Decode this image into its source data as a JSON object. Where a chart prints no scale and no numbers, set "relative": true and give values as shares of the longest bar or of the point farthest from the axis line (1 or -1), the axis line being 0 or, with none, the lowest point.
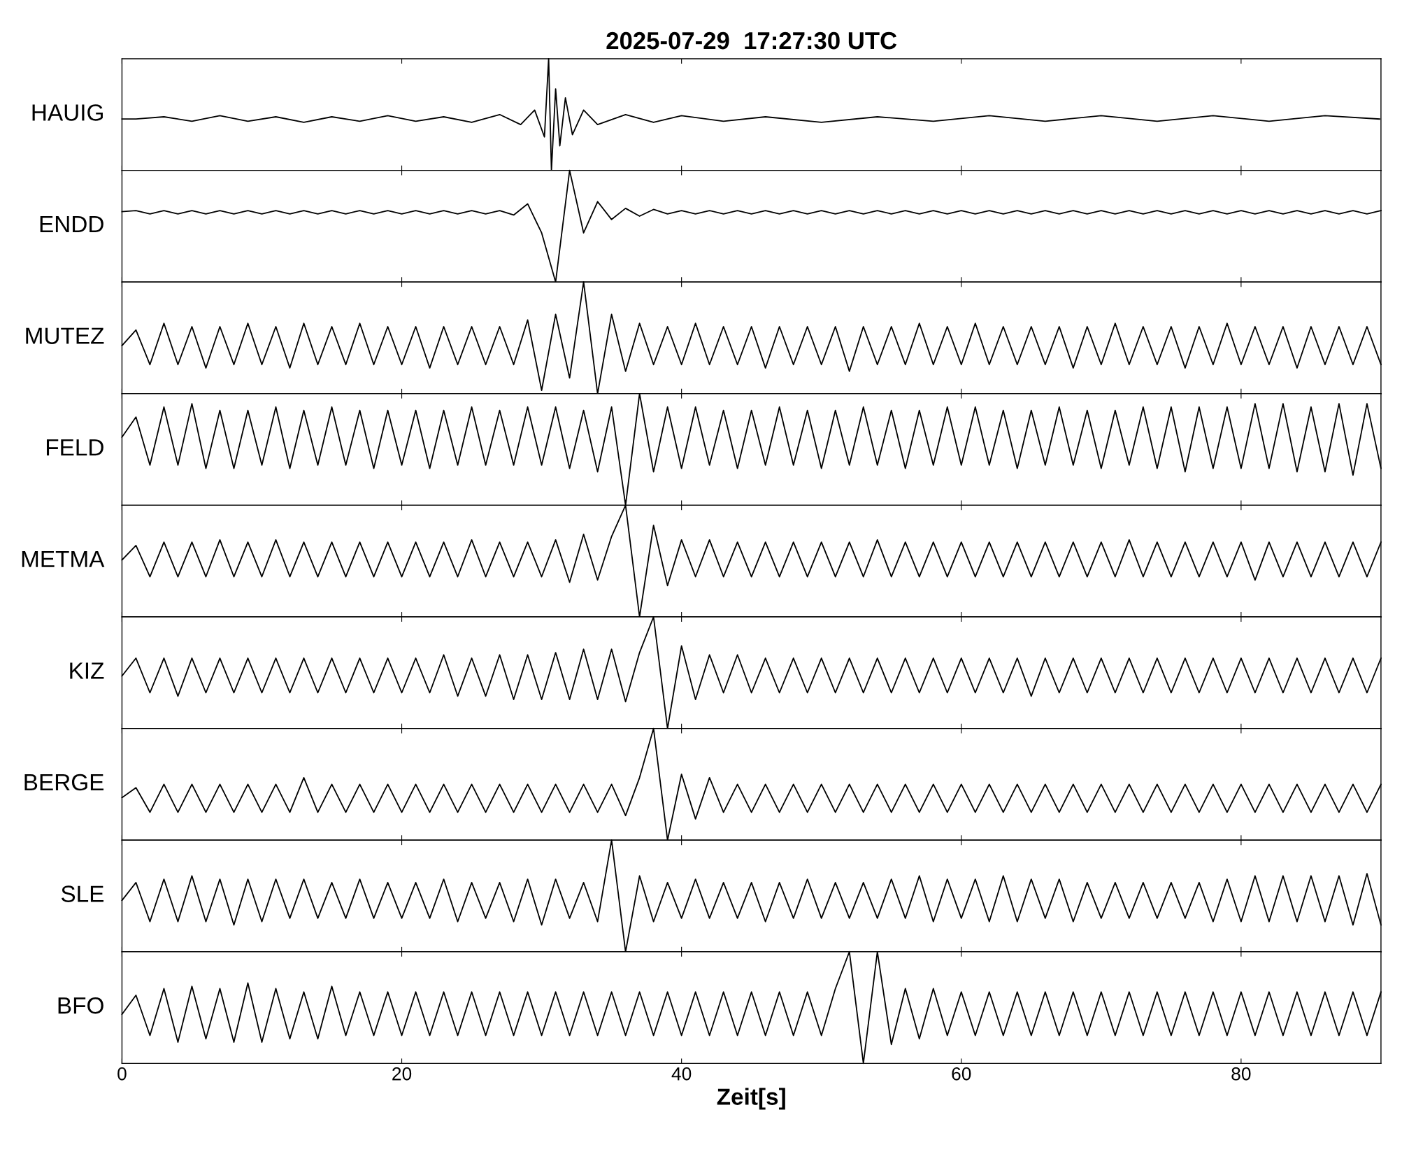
{
  "chart_data": [
    {
      "type": "line",
      "title": "2025-07-29  17:27:30 UTC",
      "ylabel": "HAUIG",
      "relative": true,
      "color": "#000000",
      "xlim": [
        0,
        90
      ],
      "xticks": [
        0,
        20,
        40,
        60,
        80
      ],
      "tick_labels": false,
      "x": [
        0,
        1,
        3,
        5,
        7,
        9,
        11,
        13,
        15,
        17,
        19,
        21,
        23,
        25,
        27,
        28.5,
        29.5,
        30.2,
        30.5,
        30.7,
        31,
        31.3,
        31.7,
        32.2,
        33,
        34,
        36,
        38,
        40,
        43,
        46,
        50,
        54,
        58,
        62,
        66,
        70,
        74,
        78,
        82,
        86,
        89.9
      ],
      "values": [
        0.46,
        0.46,
        0.48,
        0.44,
        0.49,
        0.44,
        0.48,
        0.43,
        0.48,
        0.44,
        0.49,
        0.44,
        0.48,
        0.43,
        0.5,
        0.41,
        0.54,
        0.3,
        1,
        0,
        0.73,
        0.22,
        0.65,
        0.32,
        0.54,
        0.41,
        0.5,
        0.43,
        0.49,
        0.44,
        0.48,
        0.43,
        0.48,
        0.44,
        0.49,
        0.44,
        0.49,
        0.44,
        0.49,
        0.44,
        0.49,
        0.46
      ]
    },
    {
      "type": "line",
      "ylabel": "ENDD",
      "relative": true,
      "color": "#000000",
      "xlim": [
        0,
        90
      ],
      "xticks": [
        0,
        20,
        40,
        60,
        80
      ],
      "tick_labels": false,
      "x": [
        0,
        1,
        2,
        3,
        4,
        5,
        6,
        7,
        8,
        9,
        10,
        11,
        12,
        13,
        14,
        15,
        16,
        17,
        18,
        19,
        20,
        21,
        22,
        23,
        24,
        25,
        26,
        27,
        28,
        29,
        30,
        31,
        32,
        33,
        34,
        35,
        36,
        37,
        38,
        39,
        40,
        41,
        42,
        43,
        44,
        45,
        46,
        47,
        48,
        49,
        50,
        51,
        52,
        53,
        54,
        55,
        56,
        57,
        58,
        59,
        60,
        61,
        62,
        63,
        64,
        65,
        66,
        67,
        68,
        69,
        70,
        71,
        72,
        73,
        74,
        75,
        76,
        77,
        78,
        79,
        80,
        81,
        82,
        83,
        84,
        85,
        86,
        87,
        88,
        89,
        90
      ],
      "values": [
        0.63,
        0.64,
        0.61,
        0.64,
        0.61,
        0.64,
        0.61,
        0.64,
        0.61,
        0.64,
        0.61,
        0.64,
        0.61,
        0.64,
        0.61,
        0.64,
        0.61,
        0.64,
        0.61,
        0.64,
        0.61,
        0.64,
        0.61,
        0.64,
        0.61,
        0.64,
        0.61,
        0.64,
        0.6,
        0.7,
        0.44,
        0,
        1,
        0.44,
        0.72,
        0.56,
        0.66,
        0.59,
        0.65,
        0.61,
        0.64,
        0.61,
        0.64,
        0.61,
        0.64,
        0.61,
        0.64,
        0.61,
        0.64,
        0.61,
        0.64,
        0.61,
        0.64,
        0.61,
        0.64,
        0.61,
        0.64,
        0.61,
        0.64,
        0.61,
        0.64,
        0.61,
        0.64,
        0.61,
        0.64,
        0.61,
        0.64,
        0.61,
        0.64,
        0.61,
        0.64,
        0.61,
        0.64,
        0.61,
        0.64,
        0.61,
        0.64,
        0.61,
        0.64,
        0.61,
        0.64,
        0.61,
        0.64,
        0.61,
        0.64,
        0.61,
        0.64,
        0.61,
        0.64,
        0.61,
        0.64
      ]
    },
    {
      "type": "line",
      "ylabel": "MUTEZ",
      "relative": true,
      "color": "#000000",
      "xlim": [
        0,
        90
      ],
      "xticks": [
        0,
        20,
        40,
        60,
        80
      ],
      "tick_labels": false,
      "x": [
        0,
        1,
        2,
        3,
        4,
        5,
        6,
        7,
        8,
        9,
        10,
        11,
        12,
        13,
        14,
        15,
        16,
        17,
        18,
        19,
        20,
        21,
        22,
        23,
        24,
        25,
        26,
        27,
        28,
        29,
        30,
        31,
        32,
        33,
        34,
        35,
        36,
        37,
        38,
        39,
        40,
        41,
        42,
        43,
        44,
        45,
        46,
        47,
        48,
        49,
        50,
        51,
        52,
        53,
        54,
        55,
        56,
        57,
        58,
        59,
        60,
        61,
        62,
        63,
        64,
        65,
        66,
        67,
        68,
        69,
        70,
        71,
        72,
        73,
        74,
        75,
        76,
        77,
        78,
        79,
        80,
        81,
        82,
        83,
        84,
        85,
        86,
        87,
        88,
        89,
        90
      ],
      "values": [
        0.43,
        0.57,
        0.26,
        0.63,
        0.26,
        0.6,
        0.23,
        0.6,
        0.26,
        0.63,
        0.26,
        0.6,
        0.23,
        0.63,
        0.26,
        0.6,
        0.26,
        0.63,
        0.26,
        0.6,
        0.26,
        0.6,
        0.23,
        0.6,
        0.26,
        0.6,
        0.26,
        0.6,
        0.26,
        0.66,
        0.03,
        0.71,
        0.14,
        1,
        0,
        0.71,
        0.2,
        0.63,
        0.26,
        0.6,
        0.26,
        0.63,
        0.26,
        0.6,
        0.26,
        0.6,
        0.23,
        0.6,
        0.26,
        0.6,
        0.26,
        0.6,
        0.2,
        0.6,
        0.26,
        0.6,
        0.26,
        0.63,
        0.26,
        0.6,
        0.26,
        0.63,
        0.26,
        0.6,
        0.26,
        0.6,
        0.26,
        0.6,
        0.23,
        0.6,
        0.26,
        0.63,
        0.26,
        0.6,
        0.26,
        0.6,
        0.23,
        0.6,
        0.26,
        0.63,
        0.26,
        0.6,
        0.26,
        0.6,
        0.23,
        0.6,
        0.26,
        0.6,
        0.26,
        0.6,
        0.26
      ]
    },
    {
      "type": "line",
      "ylabel": "FELD",
      "relative": true,
      "color": "#000000",
      "xlim": [
        0,
        90
      ],
      "xticks": [
        0,
        20,
        40,
        60,
        80
      ],
      "tick_labels": false,
      "x": [
        0,
        1,
        2,
        3,
        4,
        5,
        6,
        7,
        8,
        9,
        10,
        11,
        12,
        13,
        14,
        15,
        16,
        17,
        18,
        19,
        20,
        21,
        22,
        23,
        24,
        25,
        26,
        27,
        28,
        29,
        30,
        31,
        32,
        33,
        34,
        35,
        36,
        37,
        38,
        39,
        40,
        41,
        42,
        43,
        44,
        45,
        46,
        47,
        48,
        49,
        50,
        51,
        52,
        53,
        54,
        55,
        56,
        57,
        58,
        59,
        60,
        61,
        62,
        63,
        64,
        65,
        66,
        67,
        68,
        69,
        70,
        71,
        72,
        73,
        74,
        75,
        76,
        77,
        78,
        79,
        80,
        81,
        82,
        83,
        84,
        85,
        86,
        87,
        88,
        89,
        90
      ],
      "values": [
        0.61,
        0.79,
        0.36,
        0.88,
        0.36,
        0.91,
        0.33,
        0.85,
        0.33,
        0.85,
        0.36,
        0.88,
        0.33,
        0.85,
        0.36,
        0.88,
        0.36,
        0.85,
        0.33,
        0.85,
        0.36,
        0.85,
        0.33,
        0.85,
        0.36,
        0.88,
        0.36,
        0.85,
        0.36,
        0.88,
        0.36,
        0.88,
        0.33,
        0.85,
        0.3,
        0.88,
        0,
        1,
        0.3,
        0.88,
        0.33,
        0.88,
        0.36,
        0.85,
        0.33,
        0.85,
        0.36,
        0.88,
        0.36,
        0.85,
        0.33,
        0.85,
        0.36,
        0.88,
        0.36,
        0.85,
        0.33,
        0.85,
        0.36,
        0.88,
        0.36,
        0.88,
        0.36,
        0.85,
        0.33,
        0.85,
        0.36,
        0.88,
        0.36,
        0.85,
        0.33,
        0.85,
        0.36,
        0.88,
        0.33,
        0.88,
        0.3,
        0.88,
        0.33,
        0.88,
        0.33,
        0.91,
        0.33,
        0.91,
        0.3,
        0.88,
        0.3,
        0.91,
        0.27,
        0.91,
        0.33
      ]
    },
    {
      "type": "line",
      "ylabel": "METMA",
      "relative": true,
      "color": "#000000",
      "xlim": [
        0,
        90
      ],
      "xticks": [
        0,
        20,
        40,
        60,
        80
      ],
      "tick_labels": false,
      "x": [
        0,
        1,
        2,
        3,
        4,
        5,
        6,
        7,
        8,
        9,
        10,
        11,
        12,
        13,
        14,
        15,
        16,
        17,
        18,
        19,
        20,
        21,
        22,
        23,
        24,
        25,
        26,
        27,
        28,
        29,
        30,
        31,
        32,
        33,
        34,
        35,
        36,
        37,
        38,
        39,
        40,
        41,
        42,
        43,
        44,
        45,
        46,
        47,
        48,
        49,
        50,
        51,
        52,
        53,
        54,
        55,
        56,
        57,
        58,
        59,
        60,
        61,
        62,
        63,
        64,
        65,
        66,
        67,
        68,
        69,
        70,
        71,
        72,
        73,
        74,
        75,
        76,
        77,
        78,
        79,
        80,
        81,
        82,
        83,
        84,
        85,
        86,
        87,
        88,
        89,
        90
      ],
      "values": [
        0.51,
        0.64,
        0.36,
        0.67,
        0.36,
        0.67,
        0.36,
        0.69,
        0.36,
        0.67,
        0.36,
        0.69,
        0.36,
        0.67,
        0.36,
        0.67,
        0.36,
        0.67,
        0.36,
        0.67,
        0.36,
        0.67,
        0.36,
        0.67,
        0.36,
        0.69,
        0.36,
        0.67,
        0.36,
        0.67,
        0.36,
        0.69,
        0.31,
        0.74,
        0.33,
        0.72,
        1,
        0,
        0.82,
        0.28,
        0.69,
        0.36,
        0.69,
        0.36,
        0.67,
        0.36,
        0.67,
        0.36,
        0.67,
        0.36,
        0.67,
        0.36,
        0.67,
        0.36,
        0.69,
        0.36,
        0.67,
        0.36,
        0.67,
        0.36,
        0.67,
        0.36,
        0.67,
        0.36,
        0.67,
        0.36,
        0.67,
        0.36,
        0.67,
        0.36,
        0.67,
        0.36,
        0.69,
        0.36,
        0.67,
        0.36,
        0.67,
        0.36,
        0.67,
        0.36,
        0.67,
        0.33,
        0.67,
        0.36,
        0.67,
        0.36,
        0.67,
        0.36,
        0.67,
        0.36,
        0.67
      ]
    },
    {
      "type": "line",
      "ylabel": "KIZ",
      "relative": true,
      "color": "#000000",
      "xlim": [
        0,
        90
      ],
      "xticks": [
        0,
        20,
        40,
        60,
        80
      ],
      "tick_labels": false,
      "x": [
        0,
        1,
        2,
        3,
        4,
        5,
        6,
        7,
        8,
        9,
        10,
        11,
        12,
        13,
        14,
        15,
        16,
        17,
        18,
        19,
        20,
        21,
        22,
        23,
        24,
        25,
        26,
        27,
        28,
        29,
        30,
        31,
        32,
        33,
        34,
        35,
        36,
        37,
        38,
        39,
        40,
        41,
        42,
        43,
        44,
        45,
        46,
        47,
        48,
        49,
        50,
        51,
        52,
        53,
        54,
        55,
        56,
        57,
        58,
        59,
        60,
        61,
        62,
        63,
        64,
        65,
        66,
        67,
        68,
        69,
        70,
        71,
        72,
        73,
        74,
        75,
        76,
        77,
        78,
        79,
        80,
        81,
        82,
        83,
        84,
        85,
        86,
        87,
        88,
        89,
        90
      ],
      "values": [
        0.47,
        0.63,
        0.32,
        0.63,
        0.29,
        0.63,
        0.32,
        0.63,
        0.32,
        0.63,
        0.32,
        0.63,
        0.32,
        0.63,
        0.32,
        0.63,
        0.32,
        0.63,
        0.32,
        0.63,
        0.32,
        0.63,
        0.32,
        0.66,
        0.29,
        0.63,
        0.29,
        0.66,
        0.26,
        0.66,
        0.26,
        0.68,
        0.26,
        0.71,
        0.26,
        0.71,
        0.24,
        0.68,
        1,
        0,
        0.74,
        0.26,
        0.66,
        0.32,
        0.66,
        0.32,
        0.63,
        0.32,
        0.63,
        0.32,
        0.63,
        0.32,
        0.63,
        0.32,
        0.63,
        0.32,
        0.63,
        0.32,
        0.63,
        0.32,
        0.63,
        0.32,
        0.63,
        0.32,
        0.63,
        0.29,
        0.63,
        0.32,
        0.63,
        0.32,
        0.63,
        0.32,
        0.63,
        0.32,
        0.63,
        0.32,
        0.63,
        0.32,
        0.63,
        0.32,
        0.63,
        0.32,
        0.63,
        0.32,
        0.63,
        0.32,
        0.63,
        0.32,
        0.63,
        0.32,
        0.63
      ]
    },
    {
      "type": "line",
      "ylabel": "BERGE",
      "relative": true,
      "color": "#000000",
      "xlim": [
        0,
        90
      ],
      "xticks": [
        0,
        20,
        40,
        60,
        80
      ],
      "tick_labels": false,
      "x": [
        0,
        1,
        2,
        3,
        4,
        5,
        6,
        7,
        8,
        9,
        10,
        11,
        12,
        13,
        14,
        15,
        16,
        17,
        18,
        19,
        20,
        21,
        22,
        23,
        24,
        25,
        26,
        27,
        28,
        29,
        30,
        31,
        32,
        33,
        34,
        35,
        36,
        37,
        38,
        39,
        40,
        41,
        42,
        43,
        44,
        45,
        46,
        47,
        48,
        49,
        50,
        51,
        52,
        53,
        54,
        55,
        56,
        57,
        58,
        59,
        60,
        61,
        62,
        63,
        64,
        65,
        66,
        67,
        68,
        69,
        70,
        71,
        72,
        73,
        74,
        75,
        76,
        77,
        78,
        79,
        80,
        81,
        82,
        83,
        84,
        85,
        86,
        87,
        88,
        89,
        90
      ],
      "values": [
        0.38,
        0.47,
        0.25,
        0.5,
        0.25,
        0.5,
        0.25,
        0.5,
        0.25,
        0.5,
        0.25,
        0.5,
        0.25,
        0.56,
        0.25,
        0.5,
        0.25,
        0.5,
        0.25,
        0.5,
        0.25,
        0.5,
        0.25,
        0.5,
        0.25,
        0.5,
        0.25,
        0.5,
        0.25,
        0.5,
        0.25,
        0.5,
        0.25,
        0.5,
        0.25,
        0.5,
        0.22,
        0.56,
        1,
        0,
        0.59,
        0.19,
        0.56,
        0.25,
        0.5,
        0.25,
        0.5,
        0.25,
        0.5,
        0.25,
        0.5,
        0.25,
        0.5,
        0.25,
        0.5,
        0.25,
        0.5,
        0.25,
        0.5,
        0.25,
        0.5,
        0.25,
        0.5,
        0.25,
        0.5,
        0.25,
        0.5,
        0.25,
        0.5,
        0.25,
        0.5,
        0.25,
        0.5,
        0.25,
        0.5,
        0.25,
        0.5,
        0.25,
        0.5,
        0.25,
        0.5,
        0.25,
        0.5,
        0.25,
        0.5,
        0.25,
        0.5,
        0.25,
        0.5,
        0.25,
        0.5
      ]
    },
    {
      "type": "line",
      "ylabel": "SLE",
      "relative": true,
      "color": "#000000",
      "xlim": [
        0,
        90
      ],
      "xticks": [
        0,
        20,
        40,
        60,
        80
      ],
      "tick_labels": false,
      "x": [
        0,
        1,
        2,
        3,
        4,
        5,
        6,
        7,
        8,
        9,
        10,
        11,
        12,
        13,
        14,
        15,
        16,
        17,
        18,
        19,
        20,
        21,
        22,
        23,
        24,
        25,
        26,
        27,
        28,
        29,
        30,
        31,
        32,
        33,
        34,
        35,
        36,
        37,
        38,
        39,
        40,
        41,
        42,
        43,
        44,
        45,
        46,
        47,
        48,
        49,
        50,
        51,
        52,
        53,
        54,
        55,
        56,
        57,
        58,
        59,
        60,
        61,
        62,
        63,
        64,
        65,
        66,
        67,
        68,
        69,
        70,
        71,
        72,
        73,
        74,
        75,
        76,
        77,
        78,
        79,
        80,
        81,
        82,
        83,
        84,
        85,
        86,
        87,
        88,
        89,
        90
      ],
      "values": [
        0.46,
        0.62,
        0.27,
        0.65,
        0.27,
        0.68,
        0.27,
        0.65,
        0.24,
        0.65,
        0.27,
        0.65,
        0.3,
        0.65,
        0.3,
        0.62,
        0.3,
        0.65,
        0.3,
        0.62,
        0.3,
        0.62,
        0.3,
        0.65,
        0.27,
        0.62,
        0.3,
        0.62,
        0.27,
        0.65,
        0.24,
        0.65,
        0.3,
        0.62,
        0.27,
        1,
        0,
        0.68,
        0.27,
        0.62,
        0.3,
        0.65,
        0.3,
        0.62,
        0.3,
        0.62,
        0.27,
        0.62,
        0.3,
        0.65,
        0.3,
        0.62,
        0.3,
        0.62,
        0.3,
        0.65,
        0.3,
        0.68,
        0.27,
        0.65,
        0.3,
        0.65,
        0.27,
        0.68,
        0.27,
        0.65,
        0.3,
        0.65,
        0.27,
        0.62,
        0.3,
        0.62,
        0.3,
        0.62,
        0.3,
        0.62,
        0.3,
        0.62,
        0.27,
        0.65,
        0.27,
        0.68,
        0.27,
        0.68,
        0.27,
        0.68,
        0.27,
        0.68,
        0.24,
        0.7,
        0.24
      ]
    },
    {
      "type": "line",
      "ylabel": "BFO",
      "xlabel": "Zeit[s]",
      "relative": true,
      "color": "#000000",
      "xlim": [
        0,
        90
      ],
      "xticks": [
        0,
        20,
        40,
        60,
        80
      ],
      "tick_labels": "x",
      "x": [
        0,
        1,
        2,
        3,
        4,
        5,
        6,
        7,
        8,
        9,
        10,
        11,
        12,
        13,
        14,
        15,
        16,
        17,
        18,
        19,
        20,
        21,
        22,
        23,
        24,
        25,
        26,
        27,
        28,
        29,
        30,
        31,
        32,
        33,
        34,
        35,
        36,
        37,
        38,
        39,
        40,
        41,
        42,
        43,
        44,
        45,
        46,
        47,
        48,
        49,
        50,
        51,
        52,
        53,
        54,
        55,
        56,
        57,
        58,
        59,
        60,
        61,
        62,
        63,
        64,
        65,
        66,
        67,
        68,
        69,
        70,
        71,
        72,
        73,
        74,
        75,
        76,
        77,
        78,
        79,
        80,
        81,
        82,
        83,
        84,
        85,
        86,
        87,
        88,
        89,
        90
      ],
      "values": [
        0.44,
        0.61,
        0.25,
        0.67,
        0.19,
        0.69,
        0.22,
        0.67,
        0.19,
        0.72,
        0.19,
        0.67,
        0.22,
        0.64,
        0.22,
        0.69,
        0.25,
        0.64,
        0.25,
        0.64,
        0.25,
        0.64,
        0.25,
        0.64,
        0.25,
        0.64,
        0.25,
        0.64,
        0.25,
        0.64,
        0.25,
        0.64,
        0.25,
        0.64,
        0.25,
        0.64,
        0.25,
        0.64,
        0.25,
        0.64,
        0.25,
        0.64,
        0.25,
        0.64,
        0.25,
        0.64,
        0.25,
        0.64,
        0.25,
        0.64,
        0.25,
        0.67,
        1,
        0,
        1,
        0.17,
        0.67,
        0.22,
        0.67,
        0.25,
        0.64,
        0.25,
        0.64,
        0.25,
        0.64,
        0.25,
        0.64,
        0.25,
        0.64,
        0.25,
        0.64,
        0.25,
        0.64,
        0.25,
        0.64,
        0.25,
        0.64,
        0.25,
        0.64,
        0.25,
        0.64,
        0.25,
        0.64,
        0.25,
        0.64,
        0.25,
        0.64,
        0.25,
        0.64,
        0.25,
        0.64
      ]
    }
  ]
}
